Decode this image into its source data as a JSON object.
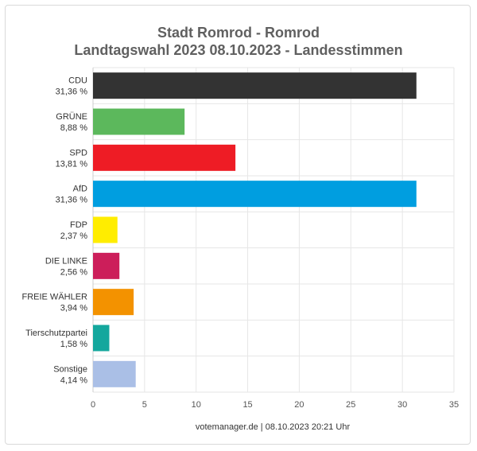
{
  "chart_data": {
    "type": "bar",
    "orientation": "horizontal",
    "title_line1": "Stadt Romrod - Romrod",
    "title_line2": "Landtagswahl 2023 08.10.2023  - Landesstimmen",
    "categories": [
      "CDU",
      "GRÜNE",
      "SPD",
      "AfD",
      "FDP",
      "DIE LINKE",
      "FREIE WÄHLER",
      "Tierschutzpartei",
      "Sonstige"
    ],
    "percent_labels": [
      "31,36 %",
      "8,88 %",
      "13,81 %",
      "31,36 %",
      "2,37 %",
      "2,56 %",
      "3,94 %",
      "1,58 %",
      "4,14 %"
    ],
    "values": [
      31.36,
      8.88,
      13.81,
      31.36,
      2.37,
      2.56,
      3.94,
      1.58,
      4.14
    ],
    "colors": [
      "#333333",
      "#5cb85c",
      "#ee1c25",
      "#009ee0",
      "#ffed00",
      "#cc1e5a",
      "#f39200",
      "#14a79d",
      "#aabfe6"
    ],
    "xlim": [
      0,
      35
    ],
    "xticks": [
      "0",
      "5",
      "10",
      "15",
      "20",
      "25",
      "30",
      "35"
    ],
    "grid": true,
    "credit": "votemanager.de | 08.10.2023 20:21 Uhr"
  }
}
